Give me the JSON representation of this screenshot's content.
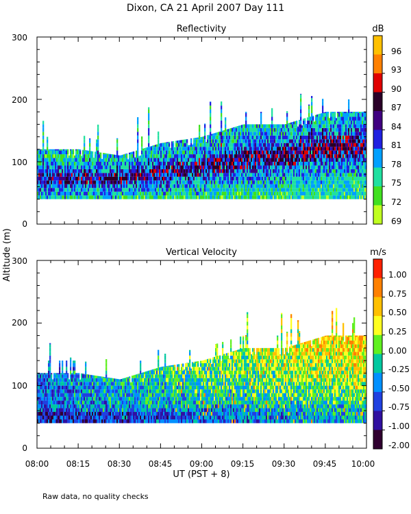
{
  "title": "Dixon, CA 21 April 2007  Day 111",
  "footnote": "Raw data, no quality checks",
  "ylabel": "Altitude (m)",
  "xlabel": "UT  (PST + 8)",
  "x_ticks": [
    "08:00",
    "08:15",
    "08:30",
    "08:45",
    "09:00",
    "09:15",
    "09:30",
    "09:45",
    "10:00"
  ],
  "chart_data": [
    {
      "type": "heatmap",
      "title": "Reflectivity",
      "ylabel": "Altitude (m)",
      "xlabel": "UT  (PST + 8)",
      "x_range": [
        "08:00",
        "10:00"
      ],
      "ylim": [
        0,
        300
      ],
      "y_ticks": [
        "300",
        "200",
        "100",
        "0"
      ],
      "colorbar_unit": "dB",
      "colorbar_labels": [
        "96",
        "93",
        "90",
        "87",
        "84",
        "81",
        "78",
        "75",
        "72",
        "69"
      ],
      "colorbar_colors": [
        "#ffc000",
        "#ff8000",
        "#e00000",
        "#2a0028",
        "#400080",
        "#2020e0",
        "#00a0ff",
        "#20e0a0",
        "#40e020",
        "#c0ff20"
      ],
      "echo_base_m": 40,
      "echo_top_profile": [
        {
          "time": "08:00",
          "top_m": 120
        },
        {
          "time": "08:15",
          "top_m": 120
        },
        {
          "time": "08:30",
          "top_m": 110
        },
        {
          "time": "08:45",
          "top_m": 130
        },
        {
          "time": "09:00",
          "top_m": 140
        },
        {
          "time": "09:15",
          "top_m": 160
        },
        {
          "time": "09:30",
          "top_m": 160
        },
        {
          "time": "09:45",
          "top_m": 180
        },
        {
          "time": "10:00",
          "top_m": 180
        }
      ]
    },
    {
      "type": "heatmap",
      "title": "Vertical Velocity",
      "ylabel": "Altitude (m)",
      "xlabel": "UT  (PST + 8)",
      "x_range": [
        "08:00",
        "10:00"
      ],
      "ylim": [
        0,
        300
      ],
      "y_ticks": [
        "300",
        "200",
        "100",
        "0"
      ],
      "colorbar_unit": "m/s",
      "colorbar_labels": [
        "1.00",
        "0.75",
        "0.50",
        "0.25",
        "0.00",
        "-0.25",
        "-0.50",
        "-0.75",
        "-1.00",
        "-2.00"
      ],
      "colorbar_colors": [
        "#ff2000",
        "#ff8000",
        "#ffc000",
        "#ffff20",
        "#60f020",
        "#00c8a0",
        "#0090ff",
        "#2040e0",
        "#3010a0",
        "#300030"
      ],
      "echo_base_m": 40,
      "echo_top_profile": [
        {
          "time": "08:00",
          "top_m": 120
        },
        {
          "time": "08:15",
          "top_m": 120
        },
        {
          "time": "08:30",
          "top_m": 110
        },
        {
          "time": "08:45",
          "top_m": 130
        },
        {
          "time": "09:00",
          "top_m": 140
        },
        {
          "time": "09:15",
          "top_m": 160
        },
        {
          "time": "09:30",
          "top_m": 160
        },
        {
          "time": "09:45",
          "top_m": 180
        },
        {
          "time": "10:00",
          "top_m": 180
        }
      ]
    }
  ]
}
